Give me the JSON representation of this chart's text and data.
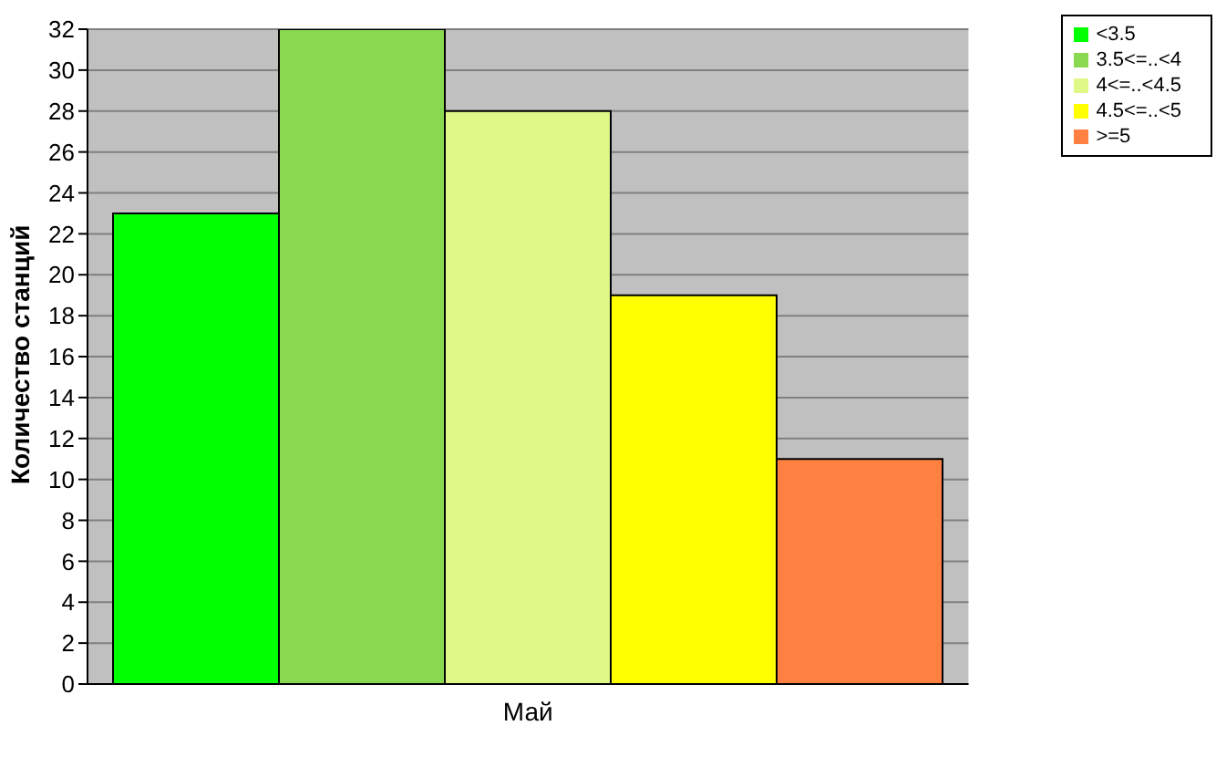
{
  "chart_data": {
    "type": "bar",
    "ylabel": "Количество станций",
    "categories": [
      "Май"
    ],
    "series": [
      {
        "name": "<3.5",
        "color": "#00ff00",
        "values": [
          23
        ]
      },
      {
        "name": "3.5<=..<4",
        "color": "#88d850",
        "values": [
          32
        ]
      },
      {
        "name": "4<=..<4.5",
        "color": "#e0f888",
        "values": [
          28
        ]
      },
      {
        "name": "4.5<=..<5",
        "color": "#ffff00",
        "values": [
          19
        ]
      },
      {
        "name": ">=5",
        "color": "#ff8040",
        "values": [
          11
        ]
      }
    ],
    "ylim": [
      0,
      32
    ],
    "yticks": [
      0,
      2,
      4,
      6,
      8,
      10,
      12,
      14,
      16,
      18,
      20,
      22,
      24,
      26,
      28,
      30,
      32
    ],
    "grid": "y",
    "legend": "top right"
  }
}
